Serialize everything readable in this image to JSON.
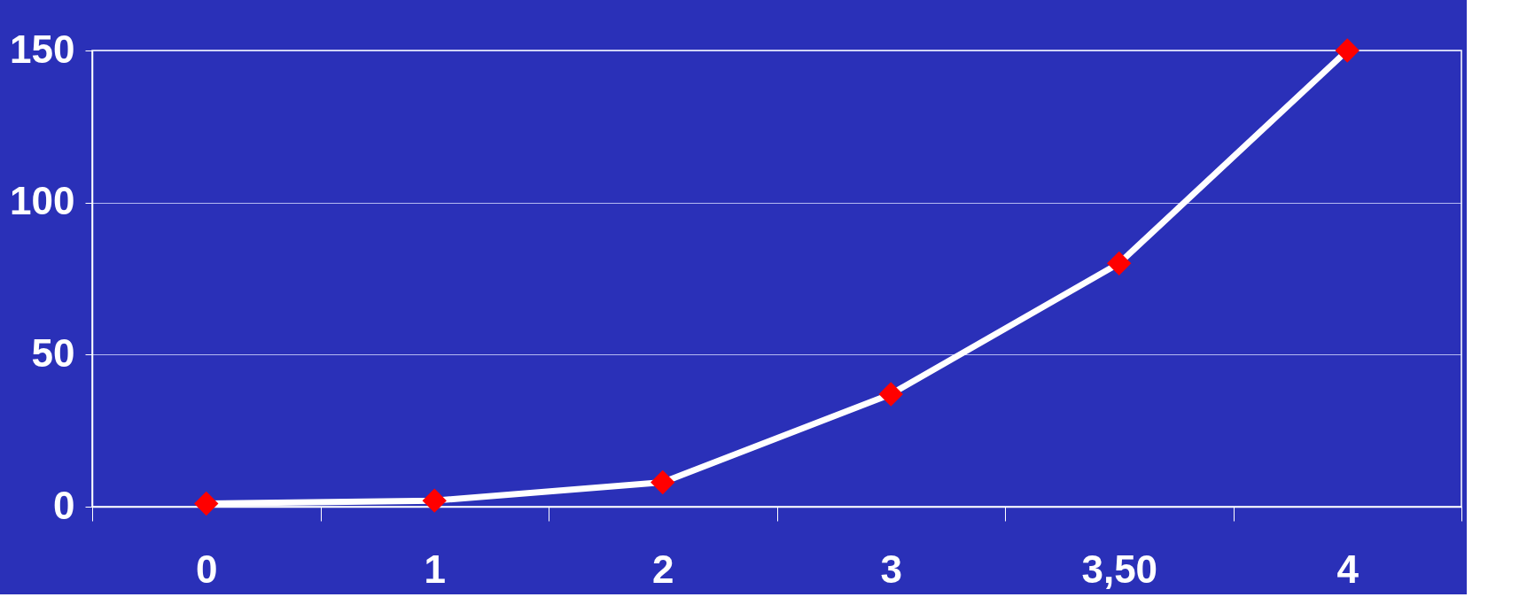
{
  "chart_data": {
    "type": "line",
    "categories": [
      "0",
      "1",
      "2",
      "3",
      "3,50",
      "4"
    ],
    "series": [
      {
        "color": "#ffffff",
        "values": [
          1,
          2,
          8,
          37,
          80,
          150
        ]
      }
    ],
    "marker": "diamond",
    "line_style": "solid",
    "ylim": [
      0,
      150
    ],
    "yticks": [
      0,
      50,
      100,
      150
    ],
    "grid": "y"
  }
}
